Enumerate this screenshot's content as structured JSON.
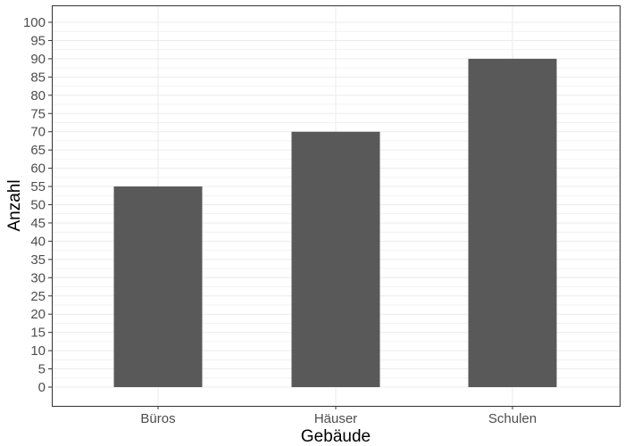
{
  "chart_data": {
    "type": "bar",
    "categories": [
      "Büros",
      "Häuser",
      "Schulen"
    ],
    "values": [
      55,
      70,
      90
    ],
    "xlabel": "Gebäude",
    "ylabel": "Anzahl",
    "ylim": [
      0,
      100
    ],
    "y_ticks": [
      0,
      5,
      10,
      15,
      20,
      25,
      30,
      35,
      40,
      45,
      50,
      55,
      60,
      65,
      70,
      75,
      80,
      85,
      90,
      95,
      100
    ],
    "grid": true,
    "legend": "none",
    "colors": {
      "bar": "#595959",
      "grid": "#ebebeb",
      "panel_border": "#333333",
      "tick_text": "#4d4d4d",
      "axis_title": "#000000"
    }
  }
}
